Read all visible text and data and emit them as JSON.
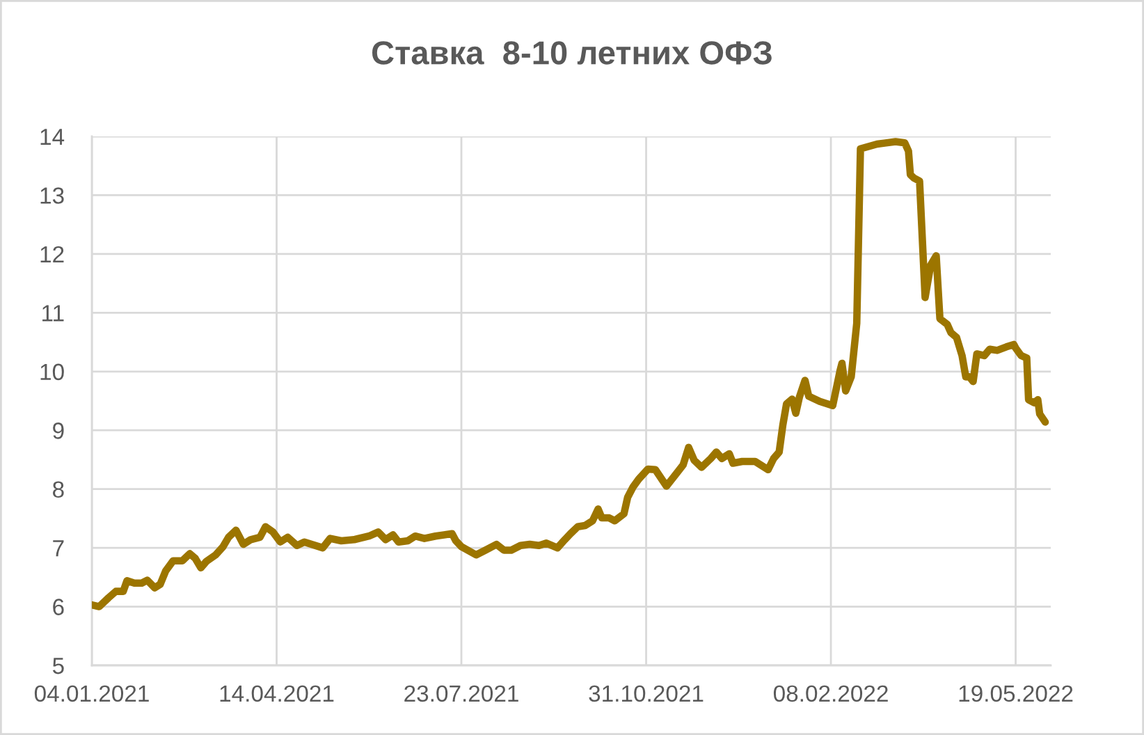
{
  "chart_data": {
    "type": "line",
    "title": "Ставка  8-10 летних ОФЗ",
    "x": [
      "2021-01-04",
      "2021-01-08",
      "2021-01-13",
      "2021-01-17",
      "2021-01-21",
      "2021-01-23",
      "2021-01-27",
      "2021-01-31",
      "2021-02-03",
      "2021-02-07",
      "2021-02-10",
      "2021-02-13",
      "2021-02-17",
      "2021-02-22",
      "2021-02-26",
      "2021-03-01",
      "2021-03-04",
      "2021-03-07",
      "2021-03-12",
      "2021-03-16",
      "2021-03-19",
      "2021-03-23",
      "2021-03-27",
      "2021-03-31",
      "2021-04-05",
      "2021-04-08",
      "2021-04-12",
      "2021-04-16",
      "2021-04-20",
      "2021-04-25",
      "2021-04-29",
      "2021-05-09",
      "2021-05-13",
      "2021-05-19",
      "2021-05-26",
      "2021-06-03",
      "2021-06-08",
      "2021-06-12",
      "2021-06-16",
      "2021-06-19",
      "2021-06-24",
      "2021-06-28",
      "2021-07-03",
      "2021-07-09",
      "2021-07-18",
      "2021-07-20",
      "2021-07-23",
      "2021-07-31",
      "2021-08-05",
      "2021-08-11",
      "2021-08-15",
      "2021-08-19",
      "2021-08-24",
      "2021-08-29",
      "2021-09-03",
      "2021-09-07",
      "2021-09-13",
      "2021-09-17",
      "2021-09-20",
      "2021-09-24",
      "2021-09-28",
      "2021-10-02",
      "2021-10-05",
      "2021-10-07",
      "2021-10-11",
      "2021-10-14",
      "2021-10-19",
      "2021-10-21",
      "2021-10-24",
      "2021-10-27",
      "2021-11-01",
      "2021-11-05",
      "2021-11-11",
      "2021-11-17",
      "2021-11-20",
      "2021-11-23",
      "2021-11-26",
      "2021-11-30",
      "2021-12-05",
      "2021-12-08",
      "2021-12-11",
      "2021-12-15",
      "2021-12-17",
      "2021-12-22",
      "2021-12-29",
      "2022-01-05",
      "2022-01-08",
      "2022-01-11",
      "2022-01-13",
      "2022-01-15",
      "2022-01-18",
      "2022-01-20",
      "2022-01-22",
      "2022-01-25",
      "2022-01-27",
      "2022-02-02",
      "2022-02-09",
      "2022-02-13",
      "2022-02-14",
      "2022-02-16",
      "2022-02-19",
      "2022-02-22",
      "2022-02-24",
      "2022-03-05",
      "2022-03-15",
      "2022-03-20",
      "2022-03-22",
      "2022-03-23",
      "2022-03-25",
      "2022-03-28",
      "2022-03-31",
      "2022-04-03",
      "2022-04-06",
      "2022-04-08",
      "2022-04-12",
      "2022-04-14",
      "2022-04-17",
      "2022-04-20",
      "2022-04-22",
      "2022-04-24",
      "2022-04-26",
      "2022-04-28",
      "2022-05-02",
      "2022-05-05",
      "2022-05-09",
      "2022-05-14",
      "2022-05-18",
      "2022-05-19",
      "2022-05-22",
      "2022-05-25",
      "2022-05-26",
      "2022-05-29",
      "2022-05-31",
      "2022-06-01",
      "2022-06-04"
    ],
    "series": [
      {
        "color": "#9c7500",
        "values": [
          6.03,
          6.0,
          6.15,
          6.26,
          6.26,
          6.44,
          6.4,
          6.4,
          6.45,
          6.32,
          6.38,
          6.61,
          6.78,
          6.78,
          6.9,
          6.82,
          6.66,
          6.77,
          6.88,
          7.02,
          7.18,
          7.3,
          7.06,
          7.14,
          7.18,
          7.36,
          7.27,
          7.1,
          7.18,
          7.04,
          7.1,
          7.0,
          7.16,
          7.12,
          7.14,
          7.2,
          7.27,
          7.14,
          7.22,
          7.1,
          7.12,
          7.2,
          7.16,
          7.2,
          7.24,
          7.12,
          7.02,
          6.88,
          6.96,
          7.06,
          6.96,
          6.96,
          7.04,
          7.06,
          7.04,
          7.08,
          7.0,
          7.14,
          7.24,
          7.36,
          7.38,
          7.46,
          7.66,
          7.51,
          7.51,
          7.46,
          7.58,
          7.86,
          8.04,
          8.17,
          8.34,
          8.33,
          8.05,
          8.29,
          8.41,
          8.71,
          8.49,
          8.37,
          8.52,
          8.63,
          8.52,
          8.6,
          8.44,
          8.47,
          8.47,
          8.33,
          8.52,
          8.63,
          9.09,
          9.45,
          9.53,
          9.29,
          9.57,
          9.85,
          9.58,
          9.49,
          9.42,
          10.02,
          10.14,
          9.67,
          9.91,
          10.82,
          13.79,
          13.87,
          13.91,
          13.89,
          13.75,
          13.35,
          13.29,
          13.24,
          11.26,
          11.81,
          11.97,
          10.9,
          10.8,
          10.66,
          10.58,
          10.27,
          9.91,
          9.91,
          9.83,
          10.3,
          10.27,
          10.38,
          10.36,
          10.42,
          10.46,
          10.4,
          10.27,
          10.23,
          9.52,
          9.47,
          9.52,
          9.28,
          9.14
        ]
      }
    ],
    "xlim": [
      "2021-01-04",
      "2022-06-07"
    ],
    "xticks": [
      {
        "value": "2021-01-04",
        "label": "04.01.2021"
      },
      {
        "value": "2021-04-14",
        "label": "14.04.2021"
      },
      {
        "value": "2021-07-23",
        "label": "23.07.2021"
      },
      {
        "value": "2021-10-31",
        "label": "31.10.2021"
      },
      {
        "value": "2022-02-08",
        "label": "08.02.2022"
      },
      {
        "value": "2022-05-19",
        "label": "19.05.2022"
      }
    ],
    "ylim": [
      5,
      14
    ],
    "yticks": [
      5,
      6,
      7,
      8,
      9,
      10,
      11,
      12,
      13,
      14
    ],
    "grid": true,
    "marker": "none",
    "line_style": "solid"
  }
}
